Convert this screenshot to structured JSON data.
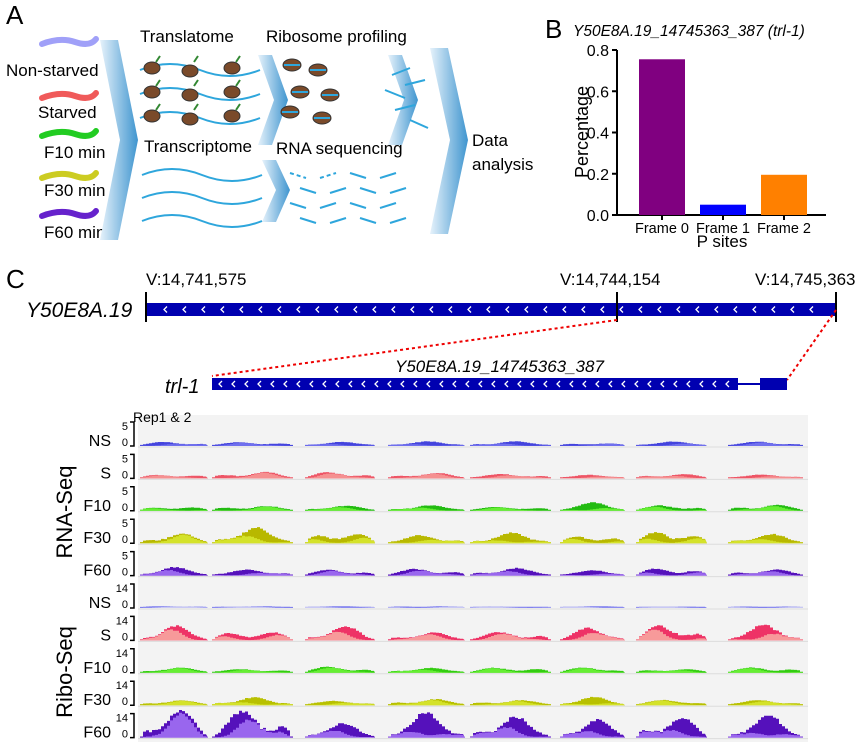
{
  "panel_a": {
    "label": "A",
    "conditions": [
      {
        "name": "Non-starved",
        "color": "#a0a0f8"
      },
      {
        "name": "Starved",
        "color": "#f05a5a"
      },
      {
        "name": "F10 min",
        "color": "#22cc22"
      },
      {
        "name": "F30 min",
        "color": "#cccc22"
      },
      {
        "name": "F60 min",
        "color": "#6622cc"
      }
    ],
    "translatome": "Translatome",
    "ribosome_profiling": "Ribosome profiling",
    "transcriptome": "Transcriptome",
    "rna_sequencing": "RNA sequencing",
    "data_analysis": [
      "Data",
      "analysis"
    ]
  },
  "panel_b": {
    "label": "B"
  },
  "chart_data": {
    "type": "bar",
    "title": "Y50E8A.19_14745363_387 (trl-1)",
    "xlabel": "P sites",
    "ylabel": "Percentage",
    "categories": [
      "Frame 0",
      "Frame 1",
      "Frame 2"
    ],
    "values": [
      0.755,
      0.05,
      0.195
    ],
    "colors": [
      "#800080",
      "#0000ff",
      "#ff8000"
    ],
    "ylim": [
      0,
      0.8
    ],
    "yticks": [
      "0.0",
      "0.2",
      "0.4",
      "0.6",
      "0.8"
    ],
    "grid": false
  },
  "panel_c": {
    "label": "C",
    "coords": [
      "V:14,741,575",
      "V:14,744,154",
      "V:14,745,363"
    ],
    "gene": "Y50E8A.19",
    "transcript_gene": "trl-1",
    "transcript_id": "Y50E8A.19_14745363_387",
    "replicates": "Rep1 & 2",
    "group_rna": "RNA-Seq",
    "group_ribo": "Ribo-Seq",
    "tracks": [
      {
        "name": "NS",
        "max": "5",
        "min": "0",
        "color": "#7070ee",
        "color2": "#4444dd",
        "amp": 0.15
      },
      {
        "name": "S",
        "max": "5",
        "min": "0",
        "color": "#f59090",
        "color2": "#ee5566",
        "amp": 0.2
      },
      {
        "name": "F10",
        "max": "5",
        "min": "0",
        "color": "#66ee33",
        "color2": "#22bb11",
        "amp": 0.25
      },
      {
        "name": "F30",
        "max": "5",
        "min": "0",
        "color": "#d4e22a",
        "color2": "#b8b800",
        "amp": 0.55
      },
      {
        "name": "F60",
        "max": "5",
        "min": "0",
        "color": "#9966ee",
        "color2": "#5511bb",
        "amp": 0.25
      },
      {
        "name": "NS",
        "max": "14",
        "min": "0",
        "color": "#c8c8f4",
        "color2": "#7777ee",
        "amp": 0.03
      },
      {
        "name": "S",
        "max": "14",
        "min": "0",
        "color": "#f79a9a",
        "color2": "#ee3366",
        "amp": 0.55
      },
      {
        "name": "F10",
        "max": "14",
        "min": "0",
        "color": "#66ee33",
        "color2": "#33cc11",
        "amp": 0.2
      },
      {
        "name": "F30",
        "max": "14",
        "min": "0",
        "color": "#d4e22a",
        "color2": "#b8c000",
        "amp": 0.25
      },
      {
        "name": "F60",
        "max": "14",
        "min": "0",
        "color": "#9966ee",
        "color2": "#5511bb",
        "amp": 0.95
      }
    ]
  }
}
